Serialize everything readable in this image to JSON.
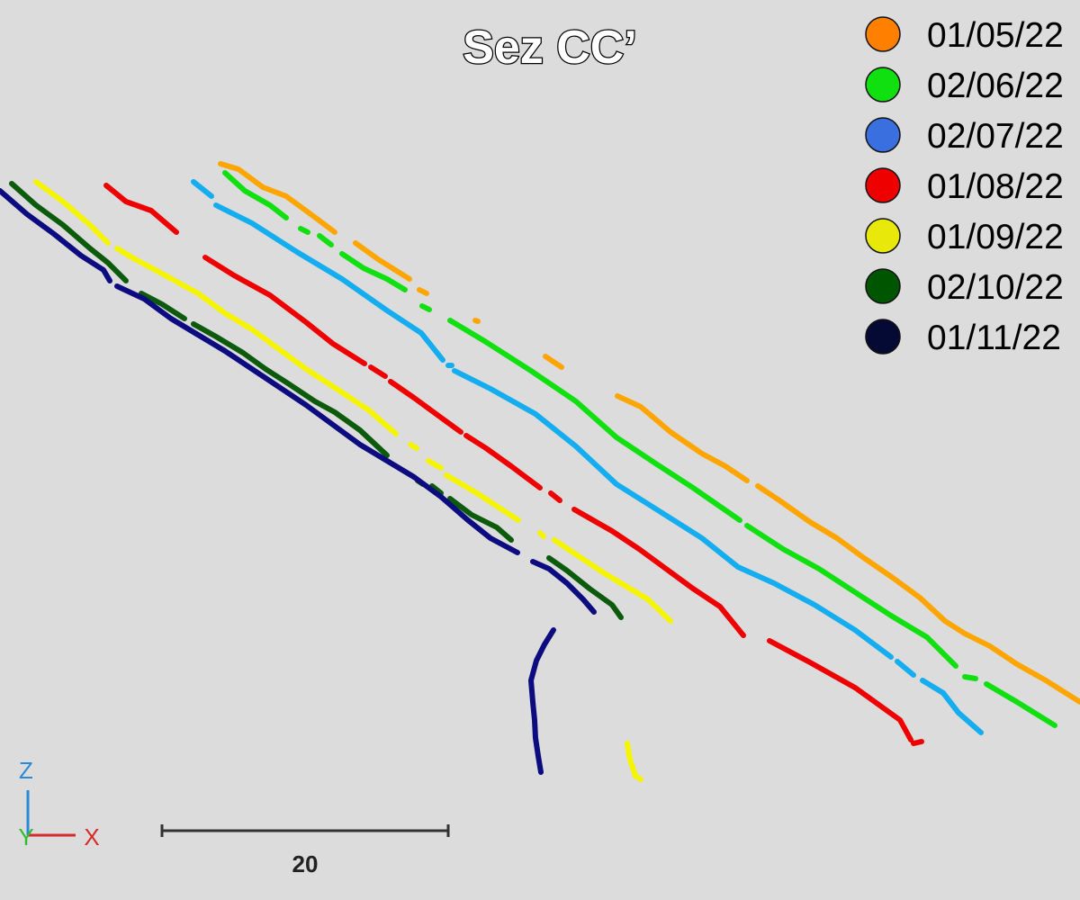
{
  "title": "Sez CC’",
  "legend": [
    {
      "label": "01/05/22",
      "color": "#ff7f00"
    },
    {
      "label": "02/06/22",
      "color": "#10e010"
    },
    {
      "label": "02/07/22",
      "color": "#3a6fe0"
    },
    {
      "label": "01/08/22",
      "color": "#ee0000"
    },
    {
      "label": "01/09/22",
      "color": "#e8e80a"
    },
    {
      "label": "02/10/22",
      "color": "#005500"
    },
    {
      "label": "01/11/22",
      "color": "#050a35"
    }
  ],
  "series_colors": {
    "01/05/22": "#ffa500",
    "02/06/22": "#10e010",
    "02/07/22": "#14adf0",
    "01/08/22": "#ee0000",
    "01/09/22": "#f5f500",
    "02/10/22": "#0c5a0c",
    "01/11/22": "#0c0c80"
  },
  "axes": {
    "z_label": "Z",
    "y_label": "Y",
    "x_label": "X",
    "z_color": "#2a8ad6",
    "y_color": "#2ebd2e",
    "x_color": "#d62a2a"
  },
  "scale_bar": {
    "label": "20"
  }
}
